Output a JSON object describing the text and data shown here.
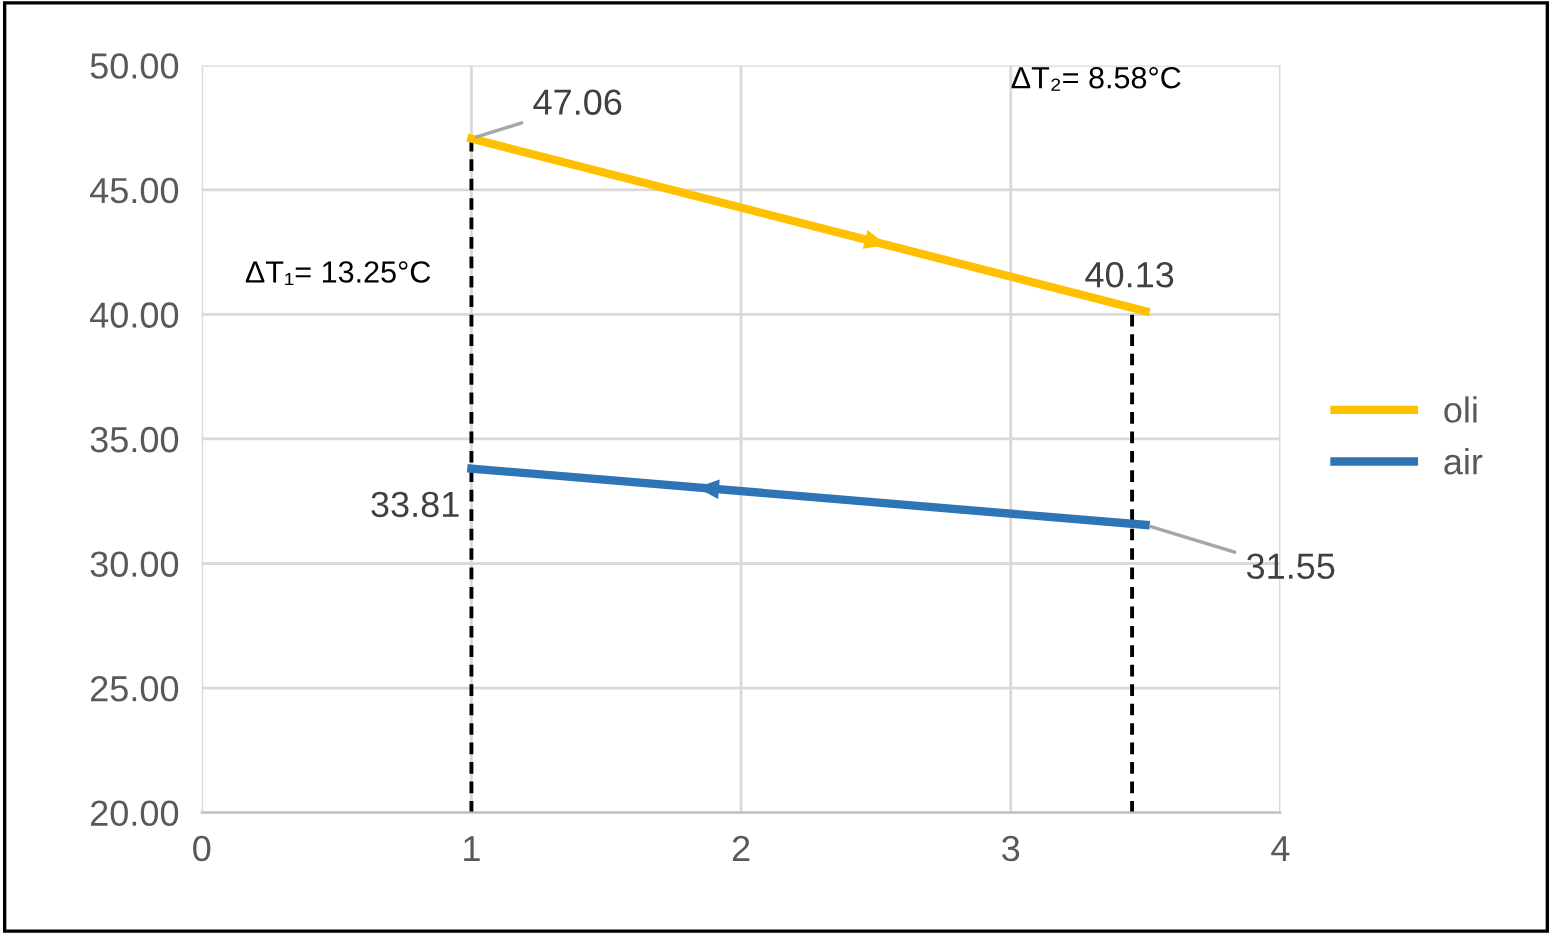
{
  "chart_data": {
    "type": "line",
    "xlim": [
      0,
      4
    ],
    "xticks": [
      0,
      1,
      2,
      3,
      4
    ],
    "ylim": [
      20,
      50
    ],
    "yticks": [
      {
        "value": 20,
        "label": "20.00"
      },
      {
        "value": 25,
        "label": "25.00"
      },
      {
        "value": 30,
        "label": "30.00"
      },
      {
        "value": 35,
        "label": "35.00"
      },
      {
        "value": 40,
        "label": "40.00"
      },
      {
        "value": 45,
        "label": "45.00"
      },
      {
        "value": 50,
        "label": "50.00"
      }
    ],
    "grid": true,
    "legend": "right",
    "marker": "none",
    "series": [
      {
        "name": "oli",
        "color": "#ffc000",
        "x": [
          1,
          3.5
        ],
        "values": [
          47.06,
          40.13
        ],
        "value_labels": [
          "47.06",
          "40.13"
        ]
      },
      {
        "name": "air",
        "color": "#2e75b6",
        "x": [
          1,
          3.5
        ],
        "values": [
          33.81,
          31.55
        ],
        "value_labels": [
          "33.81",
          "31.55"
        ]
      },
      {
        "color": "#000000",
        "x": [
          1,
          1
        ],
        "values": [
          20,
          47.06
        ],
        "line_style": "dashed"
      },
      {
        "color": "#000000",
        "x": [
          3.45,
          3.45
        ],
        "values": [
          20,
          40.13
        ],
        "line_style": "dashed"
      }
    ],
    "annotations": [
      "ΔT₁= 13.25°C",
      "ΔT₂= 8.58°C"
    ]
  }
}
